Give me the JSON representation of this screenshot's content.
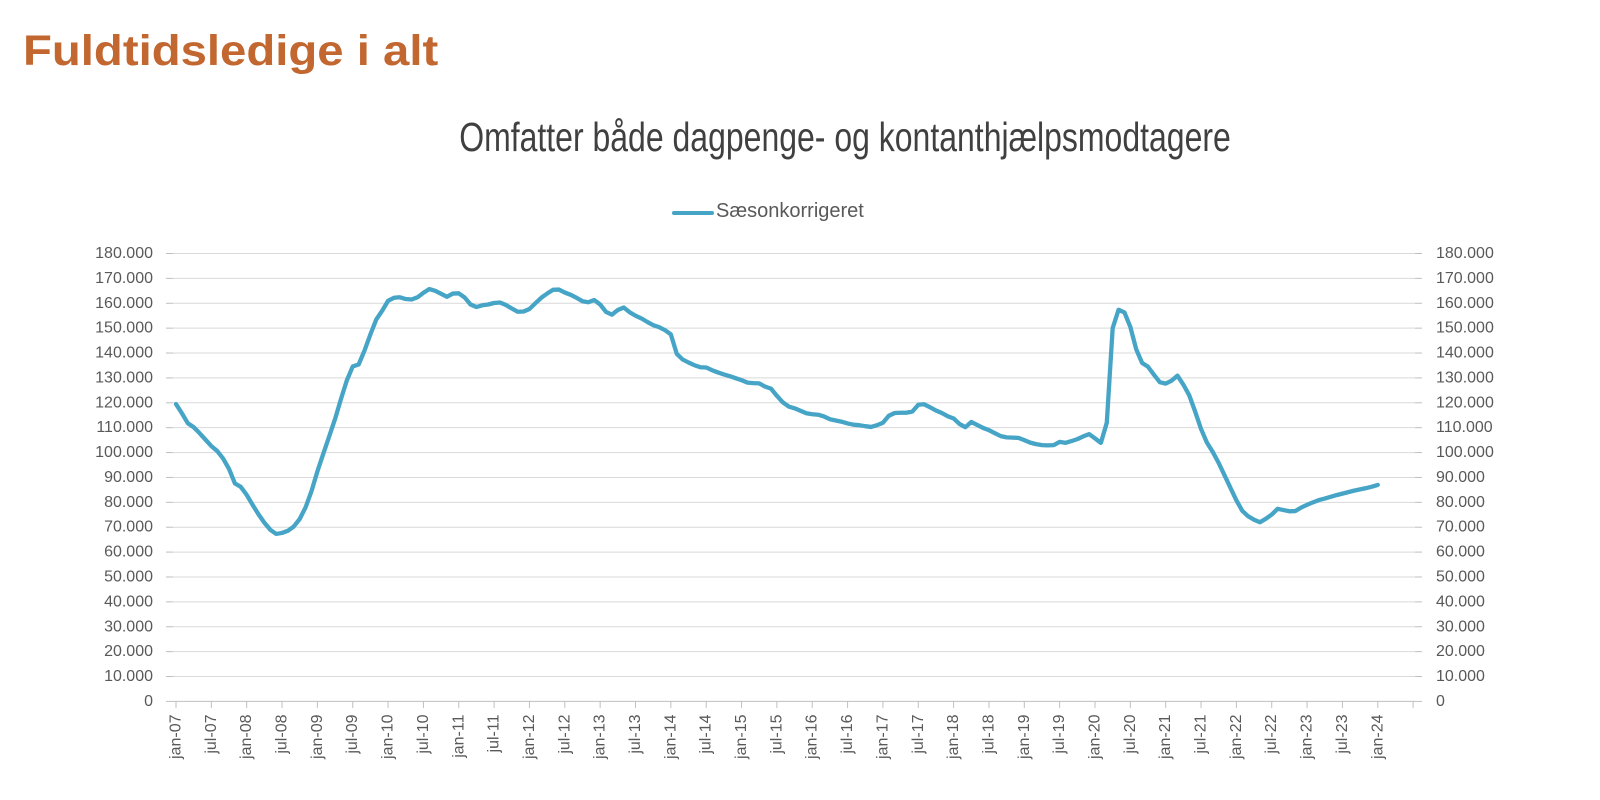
{
  "title": {
    "text": "Fuldtidsledige i alt",
    "color": "#c1672f"
  },
  "chart_data": {
    "type": "line",
    "title": "Omfatter både dagpenge- og kontanthjælpsmodtagere",
    "title_color": "#404040",
    "legend": {
      "position": "top-center",
      "entries": [
        {
          "label": "Sæsonkorrigeret",
          "color": "#46a5c6"
        }
      ]
    },
    "x_axis": {
      "unit": "month",
      "start": "jan-07",
      "end": "jan-24",
      "tick_interval_months": 6,
      "tick_labels": [
        "jan-07",
        "jul-07",
        "jan-08",
        "jul-08",
        "jan-09",
        "jul-09",
        "jan-10",
        "jul-10",
        "jan-11",
        "jul-11",
        "jan-12",
        "jul-12",
        "jan-13",
        "jul-13",
        "jan-14",
        "jul-14",
        "jan-15",
        "jul-15",
        "jan-16",
        "jul-16",
        "jan-17",
        "jul-17",
        "jan-18",
        "jul-18",
        "jan-19",
        "jul-19",
        "jan-20",
        "jul-20",
        "jan-21",
        "jul-21",
        "jan-22",
        "jul-22",
        "jan-23",
        "jul-23",
        "jan-24"
      ]
    },
    "y_axis": {
      "min": 0,
      "max": 180000,
      "step": 10000,
      "sides": [
        "left",
        "right"
      ],
      "tick_labels": [
        "0",
        "10.000",
        "20.000",
        "30.000",
        "40.000",
        "50.000",
        "60.000",
        "70.000",
        "80.000",
        "90.000",
        "100.000",
        "110.000",
        "120.000",
        "130.000",
        "140.000",
        "150.000",
        "160.000",
        "170.000",
        "180.000"
      ]
    },
    "grid": {
      "horizontal": true,
      "vertical": false
    },
    "series": [
      {
        "name": "Sæsonkorrigeret",
        "color": "#46a5c6",
        "values": [
          119500,
          115800,
          111800,
          110200,
          107800,
          105200,
          102600,
          100600,
          97600,
          93400,
          87600,
          86200,
          83000,
          79000,
          75200,
          71800,
          69000,
          67300,
          67700,
          68600,
          70300,
          73300,
          78000,
          84500,
          92400,
          99500,
          106500,
          113500,
          121500,
          129000,
          134600,
          135400,
          141000,
          147500,
          153500,
          157000,
          161000,
          162200,
          162400,
          161700,
          161500,
          162400,
          164200,
          165700,
          165000,
          163800,
          162600,
          163900,
          164000,
          162300,
          159500,
          158500,
          159200,
          159500,
          160100,
          160300,
          159300,
          157900,
          156600,
          156700,
          157700,
          160000,
          162200,
          163900,
          165400,
          165500,
          164300,
          163400,
          162200,
          160800,
          160400,
          161300,
          159500,
          156500,
          155400,
          157300,
          158300,
          156400,
          155000,
          153900,
          152500,
          151200,
          150400,
          149200,
          147500,
          139700,
          137400,
          136200,
          135100,
          134300,
          134200,
          133100,
          132200,
          131400,
          130700,
          129900,
          129100,
          128100,
          127900,
          127800,
          126500,
          125700,
          122800,
          120200,
          118500,
          117800,
          116800,
          115800,
          115400,
          115200,
          114500,
          113400,
          112900,
          112400,
          111700,
          111200,
          111000,
          110600,
          110300,
          111000,
          112000,
          114800,
          115900,
          116000,
          116000,
          116500,
          119200,
          119400,
          118200,
          116900,
          115900,
          114600,
          113700,
          111500,
          110200,
          112300,
          111100,
          109900,
          109000,
          107800,
          106600,
          106100,
          106000,
          105900,
          105000,
          104000,
          103400,
          103000,
          102900,
          103000,
          104300,
          103900,
          104600,
          105400,
          106500,
          107400,
          105700,
          103900,
          112000,
          150000,
          157400,
          156300,
          150500,
          141500,
          136000,
          134500,
          131300,
          128300,
          127700,
          128900,
          130900,
          127300,
          123000,
          116500,
          109500,
          104000,
          100200,
          95800,
          90800,
          85800,
          80800,
          76600,
          74400,
          73000,
          72000,
          73400,
          75100,
          77400,
          76900,
          76400,
          76500,
          77900,
          79000,
          80000,
          80900,
          81500,
          82200,
          82900,
          83500,
          84100,
          84700,
          85200,
          85700,
          86300,
          87000
        ]
      }
    ]
  },
  "style_colors": {
    "background": "#ffffff",
    "gridline": "#d9d9d9",
    "axis_line": "#bfbfbf",
    "tick": "#bfbfbf",
    "axis_label": "#595959",
    "legend_text": "#595959"
  }
}
